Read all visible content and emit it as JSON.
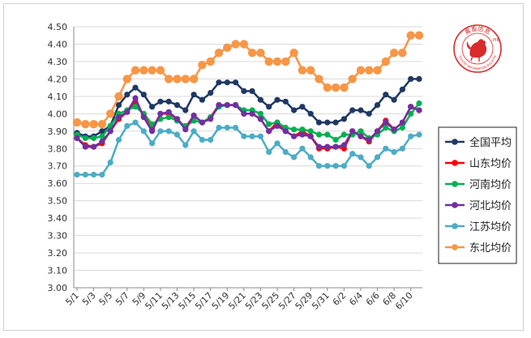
{
  "chart_data": {
    "type": "line",
    "title": "",
    "xlabel": "",
    "ylabel": "",
    "ylim": [
      3.0,
      4.5
    ],
    "y_ticks": [
      "3.00",
      "3.10",
      "3.20",
      "3.30",
      "3.40",
      "3.50",
      "3.60",
      "3.70",
      "3.80",
      "3.90",
      "4.00",
      "4.10",
      "4.20",
      "4.30",
      "4.40",
      "4.50"
    ],
    "x_tick_labels": [
      "5/1",
      "5/3",
      "5/5",
      "5/7",
      "5/9",
      "5/11",
      "5/13",
      "5/15",
      "5/17",
      "5/19",
      "5/21",
      "5/23",
      "5/25",
      "5/27",
      "5/29",
      "5/31",
      "6/2",
      "6/4",
      "6/6",
      "6/8",
      "6/10"
    ],
    "grid": true,
    "legend_position": "right",
    "series": [
      {
        "name": "全国平均",
        "color": "#1f3864",
        "values": [
          3.89,
          3.87,
          3.87,
          3.9,
          3.93,
          4.05,
          4.11,
          4.15,
          4.11,
          4.04,
          4.07,
          4.07,
          4.05,
          4.02,
          4.11,
          4.08,
          4.12,
          4.18,
          4.18,
          4.18,
          4.13,
          4.13,
          4.08,
          4.04,
          4.08,
          4.07,
          4.02,
          4.04,
          4.0,
          3.95,
          3.95,
          3.95,
          3.97,
          4.02,
          4.02,
          4.0,
          4.05,
          4.11,
          4.08,
          4.14,
          4.2,
          4.2
        ]
      },
      {
        "name": "山东均价",
        "color": "#ff0000",
        "values": [
          3.86,
          3.82,
          3.81,
          3.83,
          3.9,
          3.97,
          4.01,
          4.07,
          3.99,
          3.91,
          4.0,
          4.0,
          3.97,
          3.92,
          3.99,
          3.95,
          3.98,
          4.05,
          4.05,
          4.05,
          4.0,
          4.0,
          3.97,
          3.9,
          3.95,
          3.9,
          3.87,
          3.9,
          3.87,
          3.8,
          3.8,
          3.81,
          3.8,
          3.9,
          3.87,
          3.84,
          3.9,
          3.96,
          3.91,
          3.95,
          4.04,
          4.02
        ]
      },
      {
        "name": "河南均价",
        "color": "#00b050",
        "values": [
          3.88,
          3.86,
          3.86,
          3.87,
          3.93,
          4.0,
          4.02,
          4.04,
          4.0,
          3.94,
          3.97,
          3.98,
          3.96,
          3.93,
          3.96,
          3.95,
          3.98,
          4.04,
          4.05,
          4.05,
          4.02,
          4.02,
          4.0,
          3.94,
          3.95,
          3.92,
          3.91,
          3.91,
          3.9,
          3.88,
          3.88,
          3.85,
          3.88,
          3.88,
          3.9,
          3.86,
          3.88,
          3.92,
          3.9,
          3.92,
          4.0,
          4.06
        ]
      },
      {
        "name": "河北均价",
        "color": "#7030a0",
        "values": [
          3.86,
          3.81,
          3.81,
          3.84,
          3.9,
          3.98,
          4.01,
          4.09,
          3.98,
          3.9,
          4.0,
          4.01,
          3.97,
          3.91,
          3.99,
          3.95,
          3.97,
          4.05,
          4.05,
          4.05,
          4.0,
          4.0,
          3.97,
          3.9,
          3.93,
          3.9,
          3.87,
          3.88,
          3.87,
          3.81,
          3.81,
          3.81,
          3.82,
          3.9,
          3.87,
          3.85,
          3.9,
          3.95,
          3.91,
          3.95,
          4.04,
          4.02
        ]
      },
      {
        "name": "江苏均价",
        "color": "#4bacc6",
        "values": [
          3.65,
          3.65,
          3.65,
          3.65,
          3.72,
          3.85,
          3.93,
          3.95,
          3.9,
          3.83,
          3.9,
          3.9,
          3.88,
          3.82,
          3.9,
          3.85,
          3.85,
          3.92,
          3.92,
          3.92,
          3.87,
          3.87,
          3.87,
          3.78,
          3.83,
          3.78,
          3.75,
          3.8,
          3.75,
          3.7,
          3.7,
          3.7,
          3.7,
          3.77,
          3.75,
          3.7,
          3.75,
          3.8,
          3.78,
          3.8,
          3.87,
          3.88
        ]
      },
      {
        "name": "东北均价",
        "color": "#f79646",
        "values": [
          3.95,
          3.94,
          3.94,
          3.94,
          4.0,
          4.1,
          4.2,
          4.25,
          4.25,
          4.25,
          4.25,
          4.2,
          4.2,
          4.2,
          4.2,
          4.28,
          4.3,
          4.35,
          4.38,
          4.4,
          4.4,
          4.35,
          4.35,
          4.3,
          4.3,
          4.3,
          4.35,
          4.25,
          4.25,
          4.2,
          4.15,
          4.15,
          4.15,
          4.2,
          4.25,
          4.25,
          4.25,
          4.3,
          4.35,
          4.35,
          4.45,
          4.45
        ]
      }
    ]
  },
  "logo": {
    "name_cn": "禽畜信息",
    "acronym": "PIB",
    "name_en": "POULTRY INFORMATION BULLETIN",
    "color": "#d92b2b"
  }
}
